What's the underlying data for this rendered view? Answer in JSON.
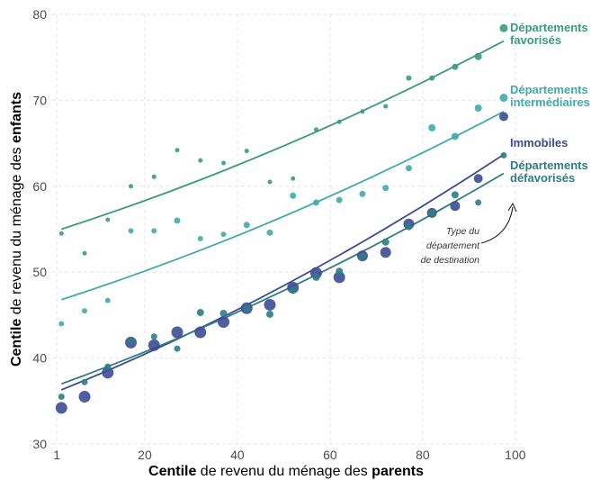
{
  "chart_data": {
    "type": "scatter",
    "xlabel": {
      "pre": "Centile",
      "mid": " de revenu du ménage des ",
      "post": "parents"
    },
    "ylabel": {
      "pre": "Centile",
      "mid": " de revenu du ménage des ",
      "post": "enfants"
    },
    "xlim": [
      0,
      101
    ],
    "ylim": [
      30,
      80
    ],
    "xticks": [
      1,
      20,
      40,
      60,
      80,
      100
    ],
    "yticks": [
      30,
      40,
      50,
      60,
      70,
      80
    ],
    "grid": true,
    "annotation": [
      "Type du",
      "département",
      "de destination"
    ],
    "series": [
      {
        "name": "Départements favorisés",
        "label_lines": [
          "Départements",
          "favorisés"
        ],
        "color": "#3a9a80",
        "size": "small",
        "x": [
          2,
          7,
          12,
          17,
          22,
          27,
          32,
          37,
          42,
          47,
          52,
          57,
          62,
          67,
          72,
          77,
          82,
          87,
          92,
          97.5
        ],
        "y": [
          54.5,
          52.2,
          56.1,
          60.0,
          61.1,
          64.2,
          63.0,
          62.7,
          64.1,
          60.5,
          60.9,
          66.6,
          67.5,
          68.7,
          69.3,
          72.6,
          72.6,
          73.9,
          75.1,
          78.4
        ],
        "sizes": [
          2.5,
          2.5,
          2.5,
          2.5,
          2.5,
          2.5,
          2.5,
          2.5,
          2.5,
          2.5,
          2.5,
          2.5,
          2.5,
          2.5,
          2.5,
          3,
          3,
          3.5,
          4,
          4.5
        ],
        "fit": {
          "x": [
            2,
            97.5
          ],
          "y0": 55.0,
          "y1": 76.9
        }
      },
      {
        "name": "Départements intermédiaires",
        "label_lines": [
          "Départements",
          "intermédiaires"
        ],
        "color": "#41aaa8",
        "size": "medium",
        "x": [
          2,
          7,
          12,
          17,
          22,
          27,
          32,
          37,
          42,
          47,
          52,
          57,
          62,
          67,
          72,
          77,
          82,
          87,
          92,
          97.5
        ],
        "y": [
          44.0,
          45.5,
          46.7,
          54.8,
          54.8,
          56.0,
          53.9,
          54.4,
          55.5,
          54.6,
          58.9,
          58.1,
          58.4,
          59.1,
          59.8,
          62.1,
          66.8,
          65.8,
          69.1,
          70.3
        ],
        "sizes": [
          3,
          3,
          3,
          3,
          3,
          3.5,
          3,
          3,
          3.5,
          3.5,
          3.5,
          3.5,
          3.5,
          3.5,
          3.5,
          3.5,
          4,
          4,
          4,
          4.5
        ],
        "fit": {
          "x": [
            2,
            97.5
          ],
          "y0": 46.8,
          "y1": 68.7
        }
      },
      {
        "name": "Immobiles",
        "label_lines": [
          "Immobiles"
        ],
        "color": "#3d4b94",
        "size": "large",
        "x": [
          2,
          7,
          12,
          17,
          22,
          27,
          32,
          37,
          42,
          47,
          52,
          57,
          62,
          67,
          72,
          77,
          82,
          87,
          92,
          97.5
        ],
        "y": [
          34.2,
          35.5,
          38.3,
          41.8,
          41.5,
          43.0,
          43.0,
          44.2,
          45.8,
          46.2,
          48.2,
          49.9,
          49.4,
          51.9,
          52.3,
          55.6,
          56.9,
          57.7,
          60.9,
          68.1
        ],
        "sizes": [
          6.5,
          6.5,
          6.5,
          6.5,
          6.5,
          6.5,
          6.5,
          6.5,
          6.5,
          6.5,
          6.5,
          6.5,
          6.5,
          6,
          6,
          6,
          5.5,
          5.5,
          5,
          5
        ],
        "fit": {
          "x": [
            2,
            97.5
          ],
          "y0": 36.3,
          "y1": 63.7
        }
      },
      {
        "name": "Départements défavorisés",
        "label_lines": [
          "Départements",
          "défavorisés"
        ],
        "color": "#2e7d86",
        "size": "medium",
        "x": [
          2,
          7,
          12,
          17,
          22,
          27,
          32,
          37,
          42,
          47,
          52,
          57,
          62,
          67,
          72,
          77,
          82,
          87,
          92,
          97.5
        ],
        "y": [
          35.5,
          37.2,
          39.0,
          42.0,
          42.5,
          41.1,
          45.3,
          45.2,
          45.8,
          45.1,
          47.9,
          49.4,
          50.1,
          51.8,
          53.5,
          55.3,
          56.9,
          59.0,
          58.1,
          63.6
        ],
        "sizes": [
          3.5,
          3.5,
          3.5,
          3.5,
          3.5,
          3.5,
          4,
          4,
          4,
          4,
          4,
          4,
          4,
          4,
          4,
          4,
          4,
          4,
          3.5,
          3.5
        ],
        "fit": {
          "x": [
            2,
            97.5
          ],
          "y0": 37.0,
          "y1": 61.5
        }
      }
    ]
  }
}
